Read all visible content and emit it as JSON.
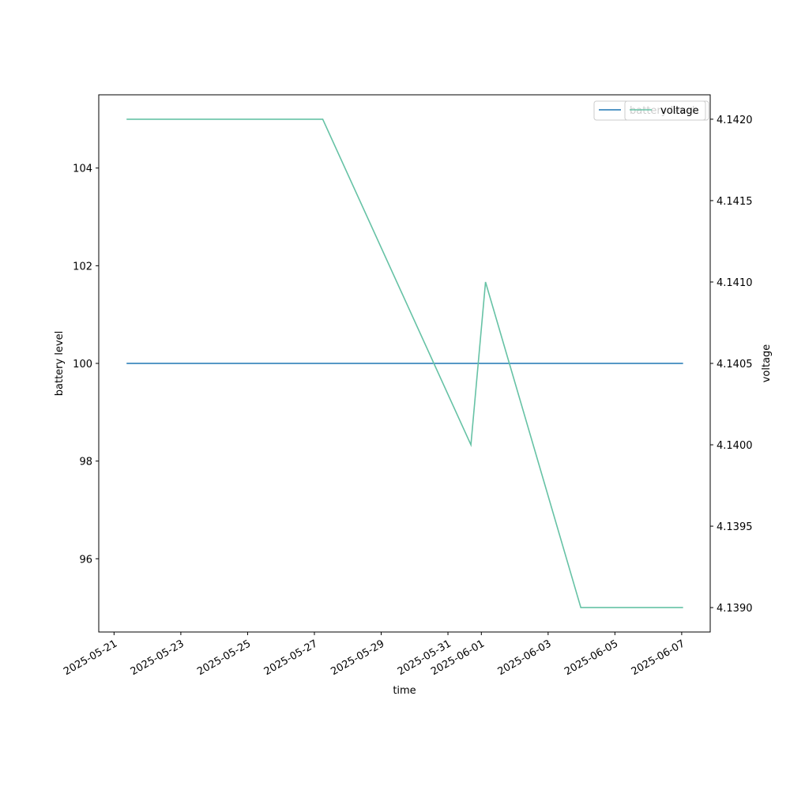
{
  "chart_data": {
    "type": "line",
    "xlabel": "time",
    "ylabel": "battery level",
    "y2label": "voltage",
    "x": [
      "2025-05-21T09:00",
      "2025-05-27T06:00",
      "2025-05-31T16:30",
      "2025-06-01T03:00",
      "2025-06-03T23:30",
      "2025-06-07T01:00"
    ],
    "series": [
      {
        "name": "battery level",
        "color": "#1f77b4",
        "values": [
          100,
          100,
          100,
          100,
          100,
          100
        ]
      },
      {
        "name": "voltage",
        "color": "#66c2a5",
        "axis": "y2",
        "values": [
          4.142,
          4.142,
          4.14,
          4.141,
          4.139,
          4.139
        ]
      }
    ],
    "xlim": [
      "2025-05-20T13:00",
      "2025-06-07T20:30"
    ],
    "xticks": [
      "2025-05-21",
      "2025-05-23",
      "2025-05-25",
      "2025-05-27",
      "2025-05-29",
      "2025-05-31",
      "2025-06-01",
      "2025-06-03",
      "2025-06-05",
      "2025-06-07"
    ],
    "ylim": [
      94.5,
      105.5
    ],
    "yticks": [
      96,
      98,
      100,
      102,
      104
    ],
    "y2lim": [
      4.13885,
      4.14215
    ],
    "y2ticks": [
      {
        "value": 4.139,
        "label": "4.1390"
      },
      4.1395,
      {
        "value": 4.14,
        "label": "4.1400"
      },
      4.1405,
      {
        "value": 4.141,
        "label": "4.1410"
      },
      4.1415,
      {
        "value": 4.142,
        "label": "4.1420"
      }
    ],
    "grid": false,
    "legend": "upper right"
  }
}
